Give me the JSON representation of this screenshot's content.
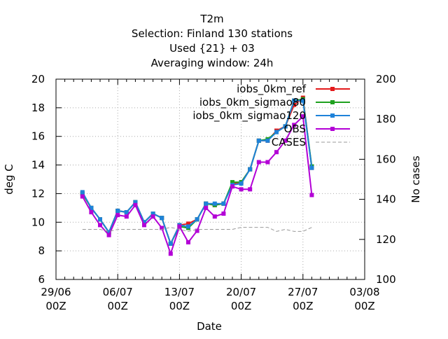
{
  "chart_data": {
    "type": "line",
    "title_lines": [
      "T2m",
      "Selection: Finland     130 stations",
      "Used {21} + 03",
      "Averaging window: 24h"
    ],
    "xlabel": "Date",
    "ylabel": "deg C",
    "y2label": "No cases",
    "x_tick_labels": [
      [
        "29/06",
        "00Z"
      ],
      [
        "06/07",
        "00Z"
      ],
      [
        "13/07",
        "00Z"
      ],
      [
        "20/07",
        "00Z"
      ],
      [
        "27/07",
        "00Z"
      ],
      [
        "03/08",
        "00Z"
      ]
    ],
    "x_ticks_days": [
      0,
      7,
      14,
      21,
      28,
      35
    ],
    "xlim_days": [
      0,
      35
    ],
    "ylim": [
      6,
      20
    ],
    "y_ticks": [
      6,
      8,
      10,
      12,
      14,
      16,
      18,
      20
    ],
    "y2lim": [
      100,
      200
    ],
    "y2_ticks": [
      100,
      120,
      140,
      160,
      180,
      200
    ],
    "grid": true,
    "legend_position": "top-right",
    "x_days": [
      3,
      4,
      5,
      6,
      7,
      8,
      9,
      10,
      11,
      12,
      13,
      14,
      15,
      16,
      17,
      18,
      19,
      20,
      21,
      22,
      23,
      24,
      25,
      26,
      27,
      28,
      29
    ],
    "series": [
      {
        "name": "iobs_0km_ref",
        "color": "#e41a1c",
        "axis": "left",
        "values": [
          12.0,
          11.0,
          10.2,
          9.3,
          10.8,
          10.7,
          11.4,
          10.0,
          10.6,
          10.3,
          8.5,
          9.8,
          9.9,
          10.2,
          11.3,
          11.2,
          11.3,
          12.7,
          12.8,
          13.7,
          15.7,
          15.7,
          16.4,
          16.7,
          18.2,
          18.7,
          13.8
        ]
      },
      {
        "name": "iobs_0km_sigmao80",
        "color": "#1fa11f",
        "axis": "left",
        "values": [
          12.0,
          11.0,
          10.2,
          9.3,
          10.8,
          10.7,
          11.4,
          10.0,
          10.6,
          10.3,
          8.5,
          9.7,
          9.6,
          10.2,
          11.3,
          11.2,
          11.3,
          12.8,
          12.8,
          13.7,
          15.7,
          15.8,
          16.3,
          16.7,
          18.5,
          18.6,
          13.9
        ]
      },
      {
        "name": "iobs_0km_sigmao120",
        "color": "#1e82d9",
        "axis": "left",
        "values": [
          12.1,
          11.0,
          10.2,
          9.3,
          10.8,
          10.7,
          11.4,
          10.0,
          10.6,
          10.3,
          8.5,
          9.8,
          9.7,
          10.2,
          11.3,
          11.3,
          11.3,
          12.6,
          12.7,
          13.7,
          15.7,
          15.7,
          16.3,
          16.7,
          18.5,
          18.5,
          13.8
        ]
      },
      {
        "name": "OBS",
        "color": "#b300d6",
        "axis": "left",
        "values": [
          11.8,
          10.7,
          9.8,
          9.1,
          10.5,
          10.4,
          11.2,
          9.8,
          10.4,
          9.6,
          7.8,
          9.7,
          8.6,
          9.4,
          11.0,
          10.4,
          10.6,
          12.5,
          12.3,
          12.3,
          14.2,
          14.2,
          14.9,
          15.7,
          16.8,
          17.4,
          11.9
        ]
      },
      {
        "name": "CASES",
        "color": "#999999",
        "axis": "right",
        "dashed": true,
        "values": [
          125,
          125,
          125,
          124,
          125,
          125,
          125,
          125,
          125,
          125,
          126,
          125,
          124,
          125,
          125,
          125,
          125,
          125,
          126,
          126,
          126,
          126,
          124,
          125,
          124,
          124,
          126
        ]
      }
    ]
  }
}
